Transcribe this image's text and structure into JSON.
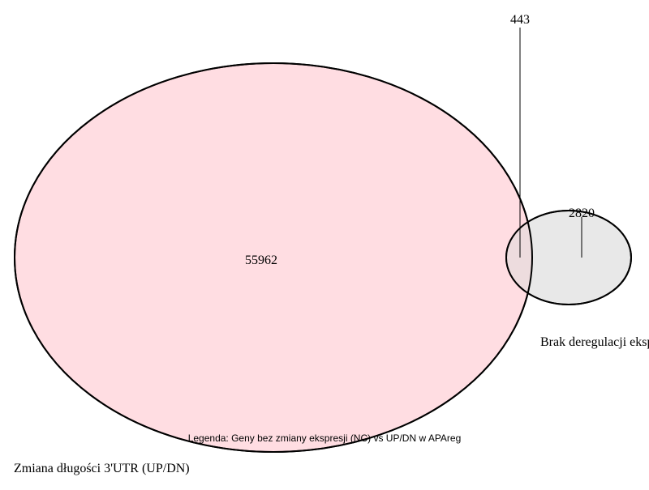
{
  "venn": {
    "sets": [
      {
        "label": "Zmiana długości 3'UTR (UP/DN)",
        "only_count": "55962",
        "fill_color": "#ffdde2",
        "stroke_color": "#000000"
      },
      {
        "label": "Brak deregulacji ekspresji (NC)",
        "only_count": "2820",
        "fill_color": "#e8e8e8",
        "stroke_color": "#000000"
      }
    ],
    "intersection_count": "443",
    "intersection_fill": "#eddcde",
    "caption": "Legenda: Geny bez zmiany ekspresji (NC) vs UP/DN w APAreg"
  }
}
